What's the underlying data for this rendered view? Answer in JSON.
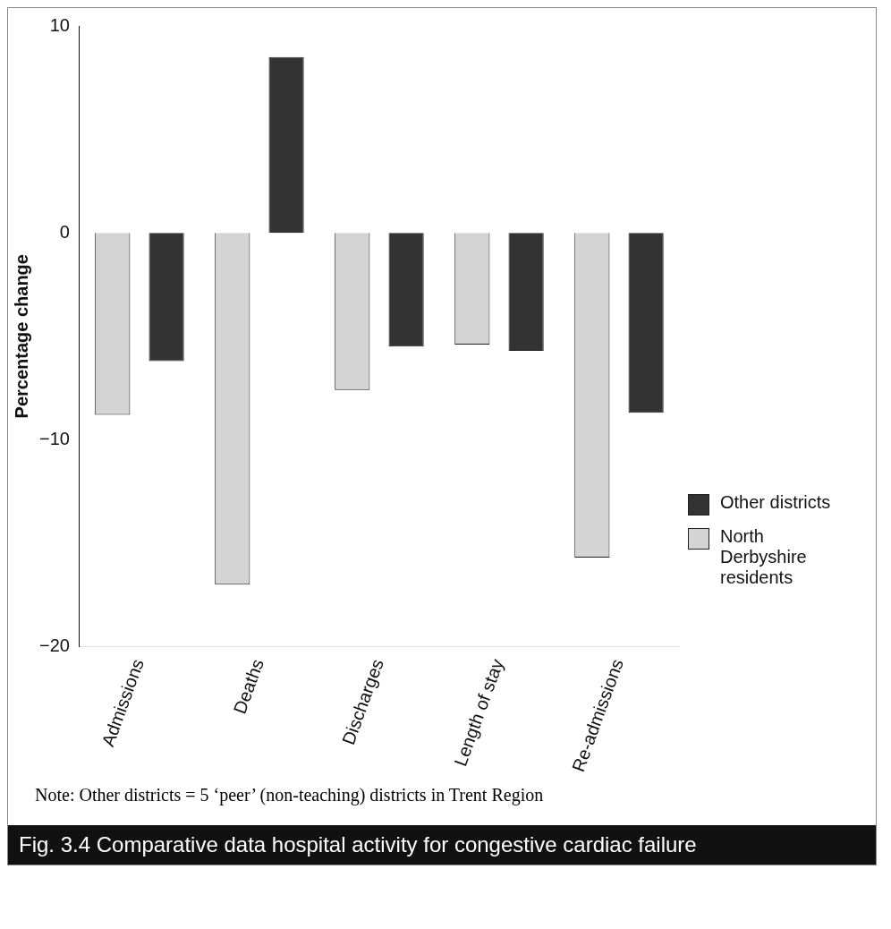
{
  "chart_data": {
    "type": "bar",
    "title": "Fig. 3.4 Comparative data hospital activity for congestive cardiac failure",
    "ylabel": "Percentage change",
    "categories": [
      "Admissions",
      "Deaths",
      "Discharges",
      "Length of stay",
      "Re-admissions"
    ],
    "series": [
      {
        "name": "North Derbyshire residents",
        "color": "#d4d4d4",
        "values": [
          -8.8,
          -17,
          -7.6,
          -5.4,
          -15.7
        ]
      },
      {
        "name": "Other districts",
        "color": "#333333",
        "values": [
          -6.2,
          8.5,
          -5.5,
          -5.7,
          -8.7
        ]
      }
    ],
    "ylim": [
      -20,
      10
    ],
    "yticks": [
      -20,
      -10,
      0,
      10
    ],
    "grid": false,
    "legend": "right",
    "annotations": [
      "Note: Other districts = 5 ‘peer’ (non-teaching) districts in Trent Region"
    ]
  }
}
